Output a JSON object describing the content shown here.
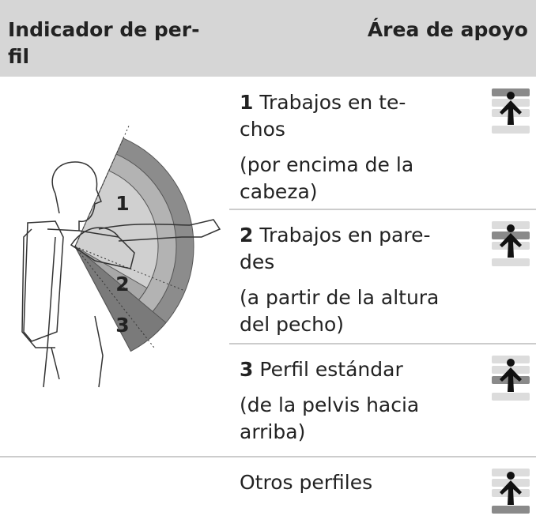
{
  "header": {
    "col1_lines": [
      "Indicador de per-",
      "fil"
    ],
    "col2": "Área de apoyo"
  },
  "illustration": {
    "labels": [
      "1",
      "2",
      "3"
    ]
  },
  "rows": [
    {
      "number": "1",
      "title_lines": [
        "Trabajos en te-",
        "chos"
      ],
      "note_lines": [
        "(por encima de la",
        "cabeza)"
      ]
    },
    {
      "number": "2",
      "title_lines": [
        "Trabajos en pare-",
        "des"
      ],
      "note_lines": [
        "(a partir de la altura",
        "del pecho)"
      ]
    },
    {
      "number": "3",
      "title_lines": [
        "Perfil estándar"
      ],
      "note_lines": [
        "(de la pelvis hacia",
        "arriba)"
      ]
    },
    {
      "title_lines": [
        "Otros perfiles"
      ]
    }
  ]
}
